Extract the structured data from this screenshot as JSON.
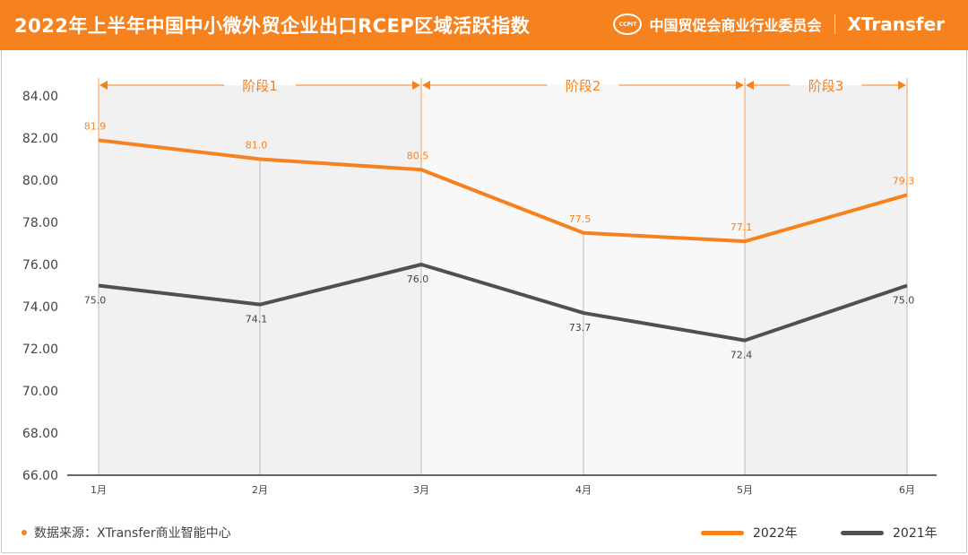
{
  "header": {
    "title": "2022年上半年中国中小微外贸企业出口RCEP区域活跃指数",
    "org": "中国贸促会商业行业委员会",
    "seal": "CCPIT",
    "brand": "XTransfer"
  },
  "footer": {
    "source": "数据来源：XTransfer商业智能中心"
  },
  "chart_data": {
    "type": "line",
    "title": "2022年上半年中国中小微外贸企业出口RCEP区域活跃指数",
    "categories": [
      "1月",
      "2月",
      "3月",
      "4月",
      "5月",
      "6月"
    ],
    "series": [
      {
        "name": "2022年",
        "color": "#F5821F",
        "values": [
          81.9,
          81.0,
          80.5,
          77.5,
          77.1,
          79.3
        ],
        "labels": [
          "81.9",
          "81.0",
          "80.5",
          "77.5",
          "77.1",
          "79.3"
        ]
      },
      {
        "name": "2021年",
        "color": "#505050",
        "values": [
          75.0,
          74.1,
          76.0,
          73.7,
          72.4,
          75.0
        ],
        "labels": [
          "75.0",
          "74.1",
          "76.0",
          "73.7",
          "72.4",
          "75.0"
        ]
      }
    ],
    "ylim": [
      66,
      84
    ],
    "yticks": [
      "66.00",
      "68.00",
      "70.00",
      "72.00",
      "74.00",
      "76.00",
      "78.00",
      "80.00",
      "82.00",
      "84.00"
    ],
    "stages": [
      {
        "label": "阶段1",
        "from": 0,
        "to": 2
      },
      {
        "label": "阶段2",
        "from": 2,
        "to": 4
      },
      {
        "label": "阶段3",
        "from": 4,
        "to": 5
      }
    ],
    "legend": "bottom-right",
    "grid": false
  }
}
